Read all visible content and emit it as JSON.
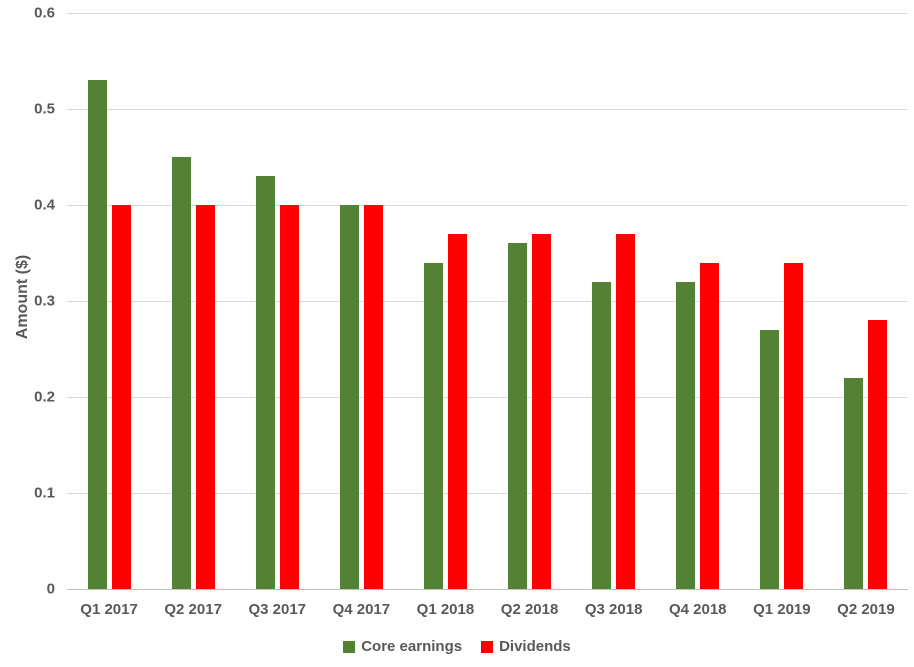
{
  "chart_data": {
    "type": "bar",
    "title": "",
    "xlabel": "",
    "ylabel": "Amount ($)",
    "ylim": [
      0,
      0.6
    ],
    "ytick_labels": [
      "0",
      "0.1",
      "0.2",
      "0.3",
      "0.4",
      "0.5",
      "0.6"
    ],
    "grid": true,
    "legend_position": "bottom",
    "categories": [
      "Q1 2017",
      "Q2 2017",
      "Q3 2017",
      "Q4 2017",
      "Q1 2018",
      "Q2 2018",
      "Q3 2018",
      "Q4 2018",
      "Q1 2019",
      "Q2 2019"
    ],
    "series": [
      {
        "name": "Core earnings",
        "color": "#548235",
        "values": [
          0.53,
          0.45,
          0.43,
          0.4,
          0.34,
          0.36,
          0.32,
          0.32,
          0.27,
          0.22
        ]
      },
      {
        "name": "Dividends",
        "color": "#FF0000",
        "values": [
          0.4,
          0.4,
          0.4,
          0.4,
          0.37,
          0.37,
          0.37,
          0.34,
          0.34,
          0.28
        ]
      }
    ]
  },
  "style": {
    "text_color": "#595959",
    "gridline_color": "#D9D9D9",
    "axis_line_color": "#BFBFBF",
    "background": "#FFFFFF"
  }
}
